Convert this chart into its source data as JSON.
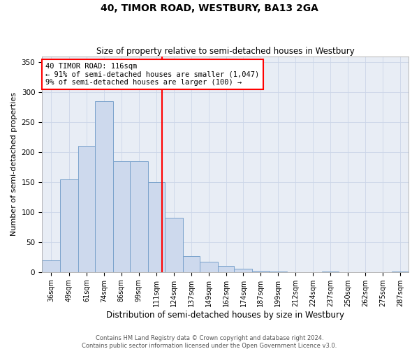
{
  "title": "40, TIMOR ROAD, WESTBURY, BA13 2GA",
  "subtitle": "Size of property relative to semi-detached houses in Westbury",
  "xlabel": "Distribution of semi-detached houses by size in Westbury",
  "ylabel": "Number of semi-detached properties",
  "footer_line1": "Contains HM Land Registry data © Crown copyright and database right 2024.",
  "footer_line2": "Contains public sector information licensed under the Open Government Licence v3.0.",
  "annotation_line1": "40 TIMOR ROAD: 116sqm",
  "annotation_line2": "← 91% of semi-detached houses are smaller (1,047)",
  "annotation_line3": "9% of semi-detached houses are larger (100) →",
  "property_size": 116,
  "bar_color": "#cdd9ed",
  "bar_edge_color": "#7ba3cc",
  "vline_color": "red",
  "annotation_box_color": "red",
  "grid_color": "#ccd6e8",
  "bg_color": "#e8edf5",
  "categories": [
    "36sqm",
    "49sqm",
    "61sqm",
    "74sqm",
    "86sqm",
    "99sqm",
    "111sqm",
    "124sqm",
    "137sqm",
    "149sqm",
    "162sqm",
    "174sqm",
    "187sqm",
    "199sqm",
    "212sqm",
    "224sqm",
    "237sqm",
    "250sqm",
    "262sqm",
    "275sqm",
    "287sqm"
  ],
  "bin_left": [
    30,
    43,
    56,
    68,
    81,
    93,
    106,
    118,
    131,
    143,
    156,
    168,
    181,
    193,
    206,
    218,
    231,
    243,
    256,
    268,
    281
  ],
  "bin_right": [
    43,
    56,
    68,
    81,
    93,
    106,
    118,
    131,
    143,
    156,
    168,
    181,
    193,
    206,
    218,
    231,
    243,
    256,
    268,
    281,
    293
  ],
  "values": [
    20,
    155,
    210,
    285,
    185,
    185,
    150,
    90,
    27,
    17,
    10,
    6,
    2,
    1,
    0,
    0,
    1,
    0,
    0,
    0,
    1
  ],
  "ylim": [
    0,
    360
  ],
  "yticks": [
    0,
    50,
    100,
    150,
    200,
    250,
    300,
    350
  ],
  "figsize": [
    6.0,
    5.0
  ],
  "dpi": 100
}
